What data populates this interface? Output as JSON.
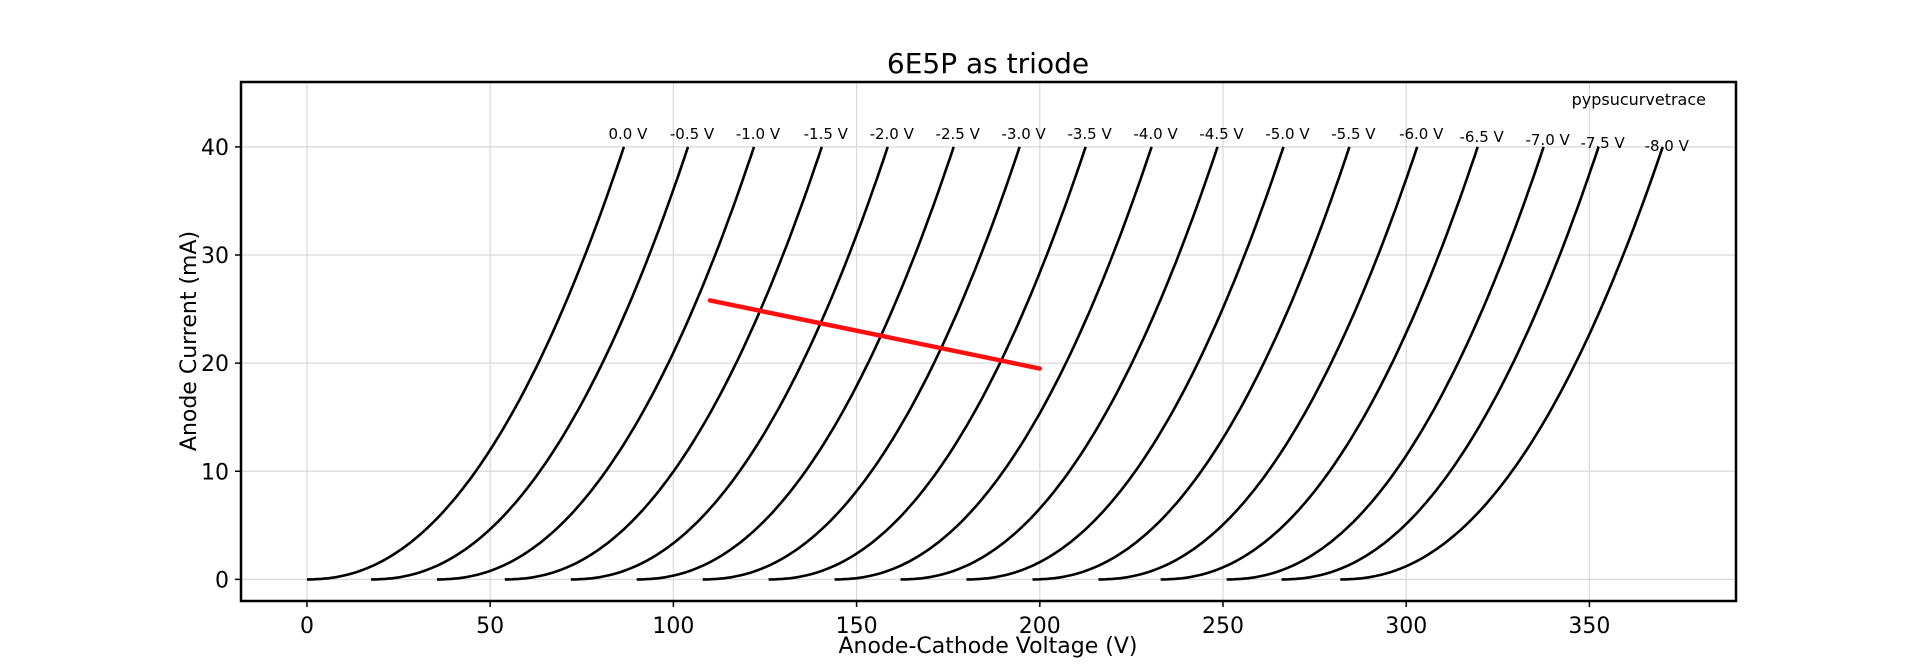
{
  "chart_data": {
    "type": "line",
    "title": "6E5P as triode",
    "xlabel": "Anode-Cathode Voltage (V)",
    "ylabel": "Anode Current (mA)",
    "xlim": [
      -18,
      390
    ],
    "ylim": [
      -2,
      46
    ],
    "xticks": [
      0,
      50,
      100,
      150,
      200,
      250,
      300,
      350
    ],
    "yticks": [
      0,
      10,
      20,
      30,
      40
    ],
    "grid": true,
    "annotation": "pypsucurvetrace",
    "series": [
      {
        "name": "0.0 V",
        "label": "0.0 V",
        "v0": 0.0,
        "vmax": 86.5
      },
      {
        "name": "-0.5 V",
        "label": "-0.5 V",
        "v0": 17.5,
        "vmax": 104.0
      },
      {
        "name": "-1.0 V",
        "label": "-1.0 V",
        "v0": 35.5,
        "vmax": 122.0
      },
      {
        "name": "-1.5 V",
        "label": "-1.5 V",
        "v0": 54.0,
        "vmax": 140.5
      },
      {
        "name": "-2.0 V",
        "label": "-2.0 V",
        "v0": 72.0,
        "vmax": 158.5
      },
      {
        "name": "-2.5 V",
        "label": "-2.5 V",
        "v0": 90.0,
        "vmax": 176.5
      },
      {
        "name": "-3.0 V",
        "label": "-3.0 V",
        "v0": 108.0,
        "vmax": 194.5
      },
      {
        "name": "-3.5 V",
        "label": "-3.5 V",
        "v0": 126.0,
        "vmax": 212.5
      },
      {
        "name": "-4.0 V",
        "label": "-4.0 V",
        "v0": 144.0,
        "vmax": 230.5
      },
      {
        "name": "-4.5 V",
        "label": "-4.5 V",
        "v0": 162.0,
        "vmax": 248.5
      },
      {
        "name": "-5.0 V",
        "label": "-5.0 V",
        "v0": 180.0,
        "vmax": 266.5
      },
      {
        "name": "-5.5 V",
        "label": "-5.5 V",
        "v0": 198.0,
        "vmax": 284.5
      },
      {
        "name": "-6.0 V",
        "label": "-6.0 V",
        "v0": 216.0,
        "vmax": 303.0
      },
      {
        "name": "-6.5 V",
        "label": "-6.5 V",
        "v0": 233.0,
        "vmax": 319.5
      },
      {
        "name": "-7.0 V",
        "label": "-7.0 V",
        "v0": 251.0,
        "vmax": 337.5
      },
      {
        "name": "-7.5 V",
        "label": "-7.5 V",
        "v0": 266.0,
        "vmax": 352.5
      },
      {
        "name": "-8.0 V",
        "label": "-8.0 V",
        "v0": 282.0,
        "vmax": 370.0
      }
    ],
    "curve_model": {
      "imax": 40,
      "vspan": 86.5,
      "exponent": 2.2,
      "mid_current_mA": 9.0
    },
    "load_line": {
      "color": "#ff0f0f",
      "x": [
        110,
        200
      ],
      "y": [
        25.8,
        19.5
      ]
    }
  }
}
